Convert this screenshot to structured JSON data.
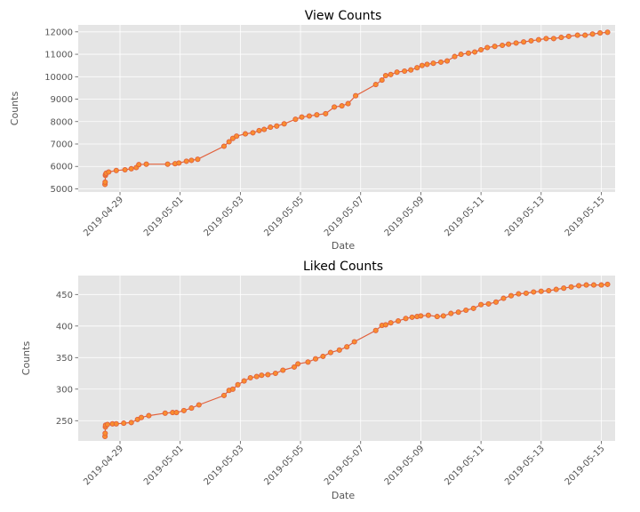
{
  "colors": {
    "plot_background": "#e5e5e5",
    "grid": "#ffffff",
    "line": "#e2613d",
    "marker_fill": "#f98e2f",
    "marker_edge": "#e2613d",
    "tick_text": "#555555"
  },
  "chart_data": [
    {
      "type": "line",
      "title": "View Counts",
      "xlabel": "Date",
      "ylabel": "Counts",
      "x_ticks": [
        "2019-04-29",
        "2019-05-01",
        "2019-05-03",
        "2019-05-05",
        "2019-05-07",
        "2019-05-09",
        "2019-05-11",
        "2019-05-13",
        "2019-05-15"
      ],
      "y_ticks": [
        5000,
        6000,
        7000,
        8000,
        9000,
        10000,
        11000,
        12000
      ],
      "xlim": [
        "2019-04-27T14:40",
        "2019-05-15T11:00"
      ],
      "ylim": [
        4860,
        12310
      ],
      "grid": true,
      "markers": true,
      "series": [
        {
          "points": [
            [
              "2019-04-28T12:00",
              5200
            ],
            [
              "2019-04-28T12:10",
              5300
            ],
            [
              "2019-04-28T12:20",
              5600
            ],
            [
              "2019-04-28T12:30",
              5650
            ],
            [
              "2019-04-28T13:00",
              5700
            ],
            [
              "2019-04-28T15:00",
              5750
            ],
            [
              "2019-04-28T21:00",
              5820
            ],
            [
              "2019-04-29T04:00",
              5850
            ],
            [
              "2019-04-29T09:00",
              5900
            ],
            [
              "2019-04-29T13:00",
              5950
            ],
            [
              "2019-04-29T15:00",
              6080
            ],
            [
              "2019-04-29T21:00",
              6100
            ],
            [
              "2019-04-30T14:00",
              6100
            ],
            [
              "2019-04-30T20:00",
              6120
            ],
            [
              "2019-04-30T23:00",
              6150
            ],
            [
              "2019-05-01T05:00",
              6230
            ],
            [
              "2019-05-01T09:00",
              6270
            ],
            [
              "2019-05-01T14:00",
              6320
            ],
            [
              "2019-05-02T11:00",
              6900
            ],
            [
              "2019-05-02T15:00",
              7100
            ],
            [
              "2019-05-02T18:00",
              7250
            ],
            [
              "2019-05-02T21:00",
              7350
            ],
            [
              "2019-05-03T04:00",
              7450
            ],
            [
              "2019-05-03T10:00",
              7500
            ],
            [
              "2019-05-03T15:00",
              7600
            ],
            [
              "2019-05-03T19:00",
              7650
            ],
            [
              "2019-05-04T00:00",
              7750
            ],
            [
              "2019-05-04T05:00",
              7800
            ],
            [
              "2019-05-04T11:00",
              7900
            ],
            [
              "2019-05-04T20:00",
              8100
            ],
            [
              "2019-05-05T01:00",
              8200
            ],
            [
              "2019-05-05T07:00",
              8250
            ],
            [
              "2019-05-05T13:00",
              8300
            ],
            [
              "2019-05-05T20:00",
              8350
            ],
            [
              "2019-05-06T03:00",
              8650
            ],
            [
              "2019-05-06T09:00",
              8700
            ],
            [
              "2019-05-06T14:00",
              8800
            ],
            [
              "2019-05-06T20:00",
              9150
            ],
            [
              "2019-05-07T12:00",
              9650
            ],
            [
              "2019-05-07T17:00",
              9850
            ],
            [
              "2019-05-07T20:00",
              10050
            ],
            [
              "2019-05-08T00:00",
              10100
            ],
            [
              "2019-05-08T05:00",
              10200
            ],
            [
              "2019-05-08T11:00",
              10250
            ],
            [
              "2019-05-08T16:00",
              10300
            ],
            [
              "2019-05-08T21:00",
              10400
            ],
            [
              "2019-05-09T01:00",
              10500
            ],
            [
              "2019-05-09T05:00",
              10550
            ],
            [
              "2019-05-09T10:00",
              10600
            ],
            [
              "2019-05-09T16:00",
              10650
            ],
            [
              "2019-05-09T21:00",
              10700
            ],
            [
              "2019-05-10T03:00",
              10900
            ],
            [
              "2019-05-10T08:00",
              11000
            ],
            [
              "2019-05-10T14:00",
              11050
            ],
            [
              "2019-05-10T19:00",
              11100
            ],
            [
              "2019-05-11T00:00",
              11200
            ],
            [
              "2019-05-11T05:00",
              11300
            ],
            [
              "2019-05-11T11:00",
              11350
            ],
            [
              "2019-05-11T17:00",
              11400
            ],
            [
              "2019-05-11T22:00",
              11450
            ],
            [
              "2019-05-12T04:00",
              11500
            ],
            [
              "2019-05-12T10:00",
              11550
            ],
            [
              "2019-05-12T16:00",
              11600
            ],
            [
              "2019-05-12T22:00",
              11650
            ],
            [
              "2019-05-13T04:00",
              11700
            ],
            [
              "2019-05-13T10:00",
              11700
            ],
            [
              "2019-05-13T16:00",
              11750
            ],
            [
              "2019-05-13T22:00",
              11800
            ],
            [
              "2019-05-14T05:00",
              11850
            ],
            [
              "2019-05-14T11:00",
              11850
            ],
            [
              "2019-05-14T17:00",
              11900
            ],
            [
              "2019-05-14T23:00",
              11950
            ],
            [
              "2019-05-15T05:00",
              11980
            ]
          ]
        }
      ]
    },
    {
      "type": "line",
      "title": "Liked Counts",
      "xlabel": "Date",
      "ylabel": "Counts",
      "x_ticks": [
        "2019-04-29",
        "2019-05-01",
        "2019-05-03",
        "2019-05-05",
        "2019-05-07",
        "2019-05-09",
        "2019-05-11",
        "2019-05-13",
        "2019-05-15"
      ],
      "y_ticks": [
        250,
        300,
        350,
        400,
        450
      ],
      "xlim": [
        "2019-04-27T14:40",
        "2019-05-15T11:00"
      ],
      "ylim": [
        218,
        480
      ],
      "grid": true,
      "markers": true,
      "series": [
        {
          "points": [
            [
              "2019-04-28T12:00",
              225
            ],
            [
              "2019-04-28T12:10",
              230
            ],
            [
              "2019-04-28T12:20",
              240
            ],
            [
              "2019-04-28T12:30",
              243
            ],
            [
              "2019-04-28T14:00",
              244
            ],
            [
              "2019-04-28T18:00",
              245
            ],
            [
              "2019-04-28T21:00",
              245
            ],
            [
              "2019-04-29T03:00",
              246
            ],
            [
              "2019-04-29T09:00",
              247
            ],
            [
              "2019-04-29T14:00",
              252
            ],
            [
              "2019-04-29T17:00",
              255
            ],
            [
              "2019-04-29T23:00",
              258
            ],
            [
              "2019-04-30T12:00",
              262
            ],
            [
              "2019-04-30T18:00",
              263
            ],
            [
              "2019-04-30T21:00",
              263
            ],
            [
              "2019-05-01T03:00",
              266
            ],
            [
              "2019-05-01T09:00",
              270
            ],
            [
              "2019-05-01T15:00",
              275
            ],
            [
              "2019-05-02T11:00",
              290
            ],
            [
              "2019-05-02T15:00",
              298
            ],
            [
              "2019-05-02T18:00",
              300
            ],
            [
              "2019-05-02T22:00",
              307
            ],
            [
              "2019-05-03T03:00",
              313
            ],
            [
              "2019-05-03T08:00",
              318
            ],
            [
              "2019-05-03T13:00",
              320
            ],
            [
              "2019-05-03T17:00",
              322
            ],
            [
              "2019-05-03T22:00",
              323
            ],
            [
              "2019-05-04T04:00",
              325
            ],
            [
              "2019-05-04T10:00",
              330
            ],
            [
              "2019-05-04T19:00",
              335
            ],
            [
              "2019-05-04T22:00",
              340
            ],
            [
              "2019-05-05T06:00",
              343
            ],
            [
              "2019-05-05T12:00",
              348
            ],
            [
              "2019-05-05T18:00",
              352
            ],
            [
              "2019-05-06T00:00",
              358
            ],
            [
              "2019-05-06T07:00",
              362
            ],
            [
              "2019-05-06T13:00",
              367
            ],
            [
              "2019-05-06T19:00",
              375
            ],
            [
              "2019-05-07T12:00",
              393
            ],
            [
              "2019-05-07T17:00",
              401
            ],
            [
              "2019-05-07T20:00",
              402
            ],
            [
              "2019-05-08T00:00",
              405
            ],
            [
              "2019-05-08T06:00",
              408
            ],
            [
              "2019-05-08T12:00",
              412
            ],
            [
              "2019-05-08T17:00",
              414
            ],
            [
              "2019-05-08T21:00",
              415
            ],
            [
              "2019-05-09T00:00",
              416
            ],
            [
              "2019-05-09T06:00",
              417
            ],
            [
              "2019-05-09T13:00",
              415
            ],
            [
              "2019-05-09T18:00",
              416
            ],
            [
              "2019-05-10T00:00",
              420
            ],
            [
              "2019-05-10T06:00",
              422
            ],
            [
              "2019-05-10T12:00",
              425
            ],
            [
              "2019-05-10T18:00",
              428
            ],
            [
              "2019-05-11T00:00",
              434
            ],
            [
              "2019-05-11T06:00",
              435
            ],
            [
              "2019-05-11T12:00",
              438
            ],
            [
              "2019-05-11T18:00",
              444
            ],
            [
              "2019-05-12T00:00",
              448
            ],
            [
              "2019-05-12T06:00",
              451
            ],
            [
              "2019-05-12T12:00",
              452
            ],
            [
              "2019-05-12T18:00",
              454
            ],
            [
              "2019-05-13T00:00",
              455
            ],
            [
              "2019-05-13T06:00",
              456
            ],
            [
              "2019-05-13T12:00",
              458
            ],
            [
              "2019-05-13T18:00",
              460
            ],
            [
              "2019-05-14T00:00",
              462
            ],
            [
              "2019-05-14T06:00",
              464
            ],
            [
              "2019-05-14T12:00",
              465
            ],
            [
              "2019-05-14T18:00",
              465
            ],
            [
              "2019-05-15T00:00",
              465
            ],
            [
              "2019-05-15T05:00",
              466
            ]
          ]
        }
      ]
    }
  ]
}
